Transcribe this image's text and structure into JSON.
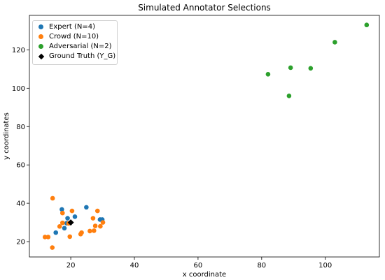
{
  "chart_data": {
    "type": "scatter",
    "title": "Simulated Annotator Selections",
    "xlabel": "x coordinate",
    "ylabel": "y coordinates",
    "xlim": [
      7,
      117
    ],
    "ylim": [
      12,
      138
    ],
    "xticks": [
      20,
      40,
      60,
      80,
      100
    ],
    "yticks": [
      20,
      40,
      60,
      80,
      100,
      120
    ],
    "grid": false,
    "legend_position": "top-left",
    "series": [
      {
        "name": "Expert (N=4)",
        "color": "#1f77b4",
        "marker": "circle",
        "points": [
          [
            17.2,
            36.8
          ],
          [
            18,
            27
          ],
          [
            18.7,
            29.6
          ],
          [
            19,
            32.2
          ],
          [
            21.3,
            33
          ],
          [
            24.9,
            37.9
          ],
          [
            29.2,
            31.5
          ],
          [
            29.9,
            31.5
          ],
          [
            15.3,
            24.7
          ]
        ]
      },
      {
        "name": "Crowd (N=10)",
        "color": "#ff7f0e",
        "marker": "circle",
        "points": [
          [
            14.3,
            42.6
          ],
          [
            17.4,
            34.9
          ],
          [
            19.7,
            22.6
          ],
          [
            20.4,
            36
          ],
          [
            17.4,
            29.8
          ],
          [
            16.5,
            27.9
          ],
          [
            23.1,
            23.9
          ],
          [
            23.4,
            24.7
          ],
          [
            26,
            25.5
          ],
          [
            27,
            32.2
          ],
          [
            27.7,
            28.2
          ],
          [
            28.4,
            36
          ],
          [
            29.3,
            28
          ],
          [
            27.3,
            25.7
          ],
          [
            30.1,
            30
          ],
          [
            11.9,
            22.4
          ],
          [
            12.9,
            22.4
          ],
          [
            14.2,
            16.9
          ],
          [
            19.3,
            29.5
          ]
        ]
      },
      {
        "name": "Adversarial (N=2)",
        "color": "#2ca02c",
        "marker": "circle",
        "points": [
          [
            82,
            107.3
          ],
          [
            89.1,
            110.7
          ],
          [
            95.4,
            110.4
          ],
          [
            88.6,
            96
          ],
          [
            103,
            124
          ],
          [
            113,
            133
          ]
        ]
      },
      {
        "name": "Ground Truth (Y_G)",
        "color": "#000000",
        "marker": "diamond",
        "points": [
          [
            20,
            30
          ]
        ]
      }
    ]
  }
}
